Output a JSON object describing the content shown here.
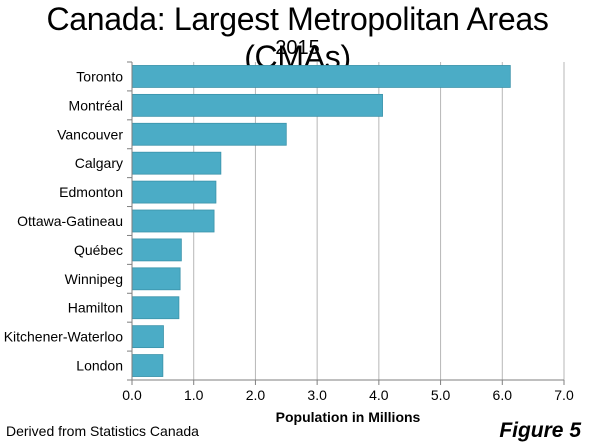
{
  "header": {
    "title": "Canada: Largest Metropolitan Areas (CMAs)",
    "subtitle": "2015"
  },
  "footer": {
    "source": "Derived from Statistics Canada",
    "figure": "Figure 5"
  },
  "colors": {
    "bar": "#4bacc6",
    "bar_edge": "#3b93aa",
    "grid": "#b7b7b7",
    "axis": "#7f7f7f"
  },
  "chart_data": {
    "type": "bar",
    "orientation": "horizontal",
    "title": "Canada: Largest Metropolitan Areas (CMAs)",
    "subtitle": "2015",
    "categories": [
      "Toronto",
      "Montréal",
      "Vancouver",
      "Calgary",
      "Edmonton",
      "Ottawa-Gatineau",
      "Québec",
      "Winnipeg",
      "Hamilton",
      "Kitchener-Waterloo",
      "London"
    ],
    "values": [
      6.13,
      4.06,
      2.5,
      1.44,
      1.36,
      1.33,
      0.8,
      0.78,
      0.76,
      0.51,
      0.5
    ],
    "xlabel": "Population in Millions",
    "ylabel": "",
    "xlim": [
      0,
      7
    ],
    "xticks": [
      "0.0",
      "1.0",
      "2.0",
      "3.0",
      "4.0",
      "5.0",
      "6.0",
      "7.0"
    ],
    "grid": true,
    "legend": "none"
  }
}
